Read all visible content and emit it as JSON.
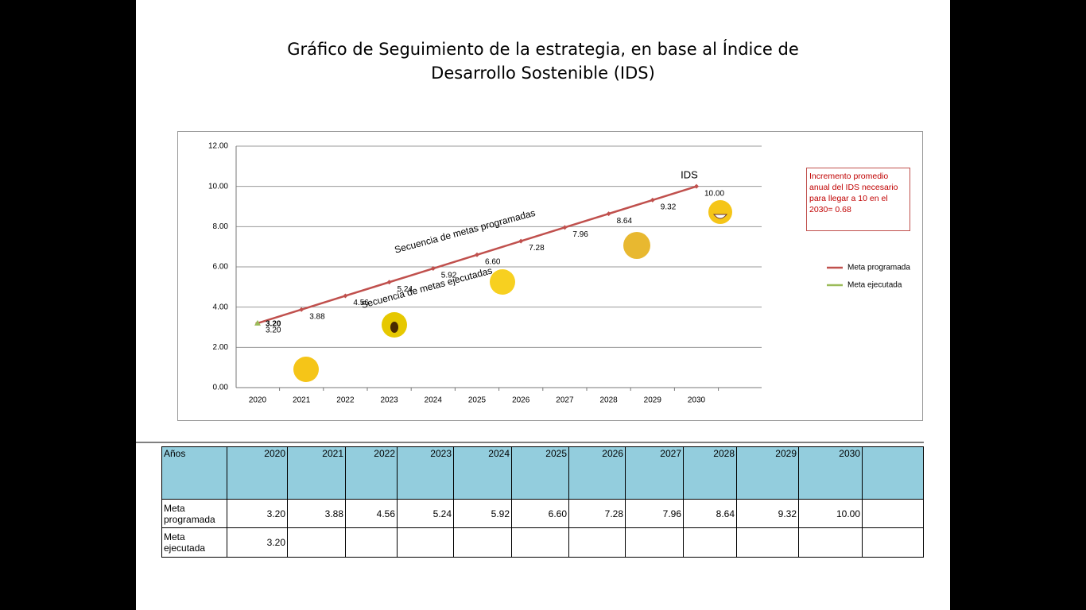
{
  "chart_data": {
    "type": "line",
    "title": "Gráfico de Seguimiento de la estrategia, en base al Índice de Desarrollo Sostenible (IDS)",
    "categories": [
      "2020",
      "2021",
      "2022",
      "2023",
      "2024",
      "2025",
      "2026",
      "2027",
      "2028",
      "2029",
      "2030"
    ],
    "series": [
      {
        "name": "Meta programada",
        "color": "#c0504d",
        "values": [
          3.2,
          3.88,
          4.56,
          5.24,
          5.92,
          6.6,
          7.28,
          7.96,
          8.64,
          9.32,
          10
        ],
        "value_labels": [
          "3.20",
          "3.88",
          "4.56",
          "5.24",
          "5.92",
          "6.60",
          "7.28",
          "7.96",
          "8.64",
          "9.32",
          "10.00"
        ]
      },
      {
        "name": "Meta ejecutada",
        "color": "#9bbb59",
        "values": [
          3.2,
          null,
          null,
          null,
          null,
          null,
          null,
          null,
          null,
          null,
          null
        ],
        "value_labels": [
          "3.20",
          null,
          null,
          null,
          null,
          null,
          null,
          null,
          null,
          null,
          null
        ]
      }
    ],
    "ylim": [
      0,
      12
    ],
    "yticks": [
      {
        "value": 0,
        "label": "0.00"
      },
      {
        "value": 2,
        "label": "2.00"
      },
      {
        "value": 4,
        "label": "4.00"
      },
      {
        "value": 6,
        "label": "6.00"
      },
      {
        "value": 8,
        "label": "8.00"
      },
      {
        "value": 10,
        "label": "10.00"
      },
      {
        "value": 12,
        "label": "12.00"
      }
    ],
    "grid": true,
    "legend": "right",
    "annotations": [
      "IDS",
      "Secuencia de metas programadas",
      "Secuencia de metas ejecutadas"
    ],
    "note": "Incremento promedio anual del IDS necesario para llegar a 10 en el 2030= 0.68"
  },
  "table": {
    "header": [
      "Años",
      "2020",
      "2021",
      "2022",
      "2023",
      "2024",
      "2025",
      "2026",
      "2027",
      "2028",
      "2029",
      "2030"
    ],
    "rows": [
      [
        "Meta programada",
        "3.20",
        "3.88",
        "4.56",
        "5.24",
        "5.92",
        "6.60",
        "7.28",
        "7.96",
        "8.64",
        "9.32",
        "10.00"
      ],
      [
        "Meta ejecutada",
        "3.20"
      ]
    ]
  }
}
